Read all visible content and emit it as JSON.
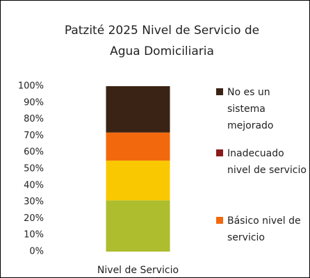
{
  "chart_data": {
    "type": "bar",
    "stacked": true,
    "title": "Patzité 2025 Nivel de Servicio de Agua Domiciliaria",
    "categories": [
      "Nivel de Servicio"
    ],
    "series": [
      {
        "color": "#adbd2e",
        "values": [
          31
        ]
      },
      {
        "color": "#fac800",
        "values": [
          24
        ]
      },
      {
        "name": "Básico nivel de servicio",
        "color": "#f2690d",
        "values": [
          17
        ]
      },
      {
        "name": "Inadecuado nivel de servicio",
        "color": "#8c1c1c",
        "values": [
          0
        ]
      },
      {
        "name": "No es un sistema mejorado",
        "color": "#3a2314",
        "values": [
          28
        ]
      }
    ],
    "ylim": [
      0,
      100
    ],
    "yticks": [
      {
        "value": 0,
        "label": "0%"
      },
      {
        "value": 10,
        "label": "10%"
      },
      {
        "value": 20,
        "label": "20%"
      },
      {
        "value": 30,
        "label": "30%"
      },
      {
        "value": 40,
        "label": "40%"
      },
      {
        "value": 50,
        "label": "50%"
      },
      {
        "value": 60,
        "label": "60%"
      },
      {
        "value": 70,
        "label": "70%"
      },
      {
        "value": 80,
        "label": "80%"
      },
      {
        "value": 90,
        "label": "90%"
      },
      {
        "value": 100,
        "label": "100%"
      }
    ],
    "grid": false
  }
}
